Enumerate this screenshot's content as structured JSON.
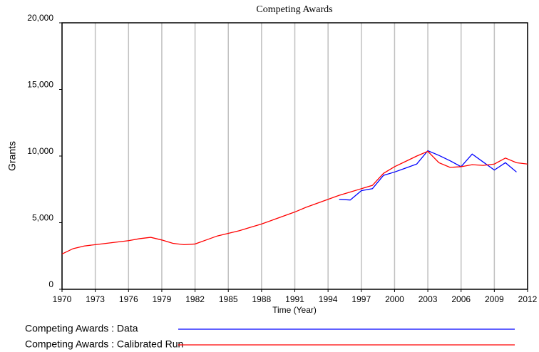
{
  "chart_data": {
    "type": "line",
    "title": "Competing Awards",
    "xlabel": "Time (Year)",
    "ylabel": "Grants",
    "xlim": [
      1970,
      2012
    ],
    "xticks": [
      1970,
      1973,
      1976,
      1979,
      1982,
      1985,
      1988,
      1991,
      1994,
      1997,
      2000,
      2003,
      2006,
      2009,
      2012
    ],
    "ylim": [
      0,
      20000
    ],
    "yticks": [
      0,
      {
        "value": 5000,
        "label": "5,000"
      },
      {
        "value": 10000,
        "label": "10,000"
      },
      {
        "value": 15000,
        "label": "15,000"
      },
      {
        "value": 20000,
        "label": "20,000"
      }
    ],
    "grid": true,
    "x": [
      1970,
      1971,
      1972,
      1973,
      1974,
      1975,
      1976,
      1977,
      1978,
      1979,
      1980,
      1981,
      1982,
      1983,
      1984,
      1985,
      1986,
      1987,
      1988,
      1989,
      1990,
      1991,
      1992,
      1993,
      1994,
      1995,
      1996,
      1997,
      1998,
      1999,
      2000,
      2001,
      2002,
      2003,
      2004,
      2005,
      2006,
      2007,
      2008,
      2009,
      2010,
      2011,
      2012
    ],
    "series": [
      {
        "name": "Competing Awards : Data",
        "color": "#0000ff",
        "values": [
          null,
          null,
          null,
          null,
          null,
          null,
          null,
          null,
          null,
          null,
          null,
          null,
          null,
          null,
          null,
          null,
          null,
          null,
          null,
          null,
          null,
          null,
          null,
          null,
          null,
          6750,
          6700,
          7400,
          7550,
          8550,
          8800,
          9100,
          9400,
          10400,
          10050,
          9650,
          9200,
          10150,
          9550,
          8950,
          9500,
          8800,
          null
        ]
      },
      {
        "name": "Competing Awards : Calibrated Run",
        "color": "#ff0000",
        "values": [
          2650,
          3050,
          3250,
          3350,
          3450,
          3550,
          3650,
          3800,
          3900,
          3700,
          3450,
          3350,
          3400,
          3700,
          4000,
          4200,
          4400,
          4650,
          4900,
          5200,
          5500,
          5800,
          6150,
          6450,
          6750,
          7050,
          7300,
          7550,
          7800,
          8700,
          9200,
          9600,
          10000,
          10350,
          9500,
          9150,
          9200,
          9350,
          9300,
          9400,
          9850,
          9500,
          9400
        ]
      }
    ]
  }
}
